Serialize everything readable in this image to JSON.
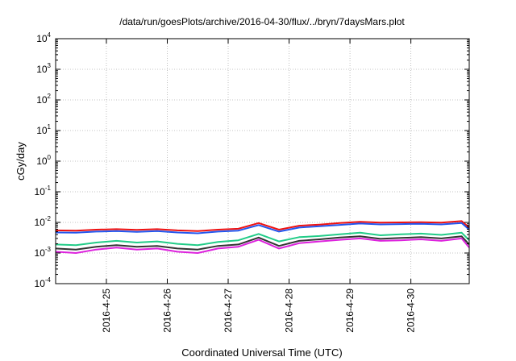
{
  "chart_data": {
    "type": "line",
    "title": "/data/run/goesPlots/archive/2016-04-30/flux/../bryn/7daysMars.plot",
    "xlabel": "Coordinated Universal Time (UTC)",
    "ylabel": "cGy/day",
    "yscale": "log",
    "ylim": [
      0.0001,
      10000
    ],
    "xlim": [
      "2016-04-24T04:00",
      "2016-04-30T23:00"
    ],
    "y_ticks": [
      {
        "base": "10",
        "exp": "4"
      },
      {
        "base": "10",
        "exp": "3"
      },
      {
        "base": "10",
        "exp": "2"
      },
      {
        "base": "10",
        "exp": "1"
      },
      {
        "base": "10",
        "exp": "0"
      },
      {
        "base": "10",
        "exp": "-1"
      },
      {
        "base": "10",
        "exp": "-2"
      },
      {
        "base": "10",
        "exp": "-3"
      },
      {
        "base": "10",
        "exp": "-4"
      }
    ],
    "x_ticks": [
      "2016-4-25",
      "2016-4-26",
      "2016-4-27",
      "2016-4-28",
      "2016-4-29",
      "2016-4-30"
    ],
    "grid": true,
    "legend": "none",
    "x": [
      "2016-04-24T04:00",
      "2016-04-24T12:00",
      "2016-04-24T20:00",
      "2016-04-25T04:00",
      "2016-04-25T12:00",
      "2016-04-25T20:00",
      "2016-04-26T04:00",
      "2016-04-26T12:00",
      "2016-04-26T20:00",
      "2016-04-27T04:00",
      "2016-04-27T12:00",
      "2016-04-27T20:00",
      "2016-04-28T04:00",
      "2016-04-28T12:00",
      "2016-04-28T20:00",
      "2016-04-29T04:00",
      "2016-04-29T12:00",
      "2016-04-29T20:00",
      "2016-04-30T04:00",
      "2016-04-30T12:00",
      "2016-04-30T20:00",
      "2016-04-30T23:00"
    ],
    "series": [
      {
        "color": "#ee1111",
        "values": [
          0.0055,
          0.0054,
          0.0058,
          0.006,
          0.0057,
          0.006,
          0.0055,
          0.0052,
          0.0058,
          0.0062,
          0.0095,
          0.0058,
          0.0078,
          0.0085,
          0.0095,
          0.0105,
          0.0098,
          0.01,
          0.0102,
          0.0098,
          0.011,
          0.0068
        ]
      },
      {
        "color": "#2255ee",
        "values": [
          0.0047,
          0.0046,
          0.005,
          0.0052,
          0.0049,
          0.0052,
          0.0047,
          0.0044,
          0.005,
          0.0054,
          0.0082,
          0.005,
          0.0068,
          0.0075,
          0.0083,
          0.0092,
          0.0086,
          0.0088,
          0.009,
          0.0086,
          0.0095,
          0.0058
        ]
      },
      {
        "color": "#22cc88",
        "values": [
          0.0019,
          0.0018,
          0.0022,
          0.0025,
          0.0022,
          0.0024,
          0.002,
          0.0018,
          0.0023,
          0.0026,
          0.0042,
          0.0024,
          0.0033,
          0.0036,
          0.0041,
          0.0046,
          0.0038,
          0.0041,
          0.0043,
          0.0039,
          0.0046,
          0.0026
        ]
      },
      {
        "color": "#333333",
        "values": [
          0.0014,
          0.0013,
          0.0016,
          0.0018,
          0.0016,
          0.0017,
          0.0014,
          0.0013,
          0.0017,
          0.0019,
          0.0032,
          0.0017,
          0.0025,
          0.0028,
          0.0032,
          0.0035,
          0.0029,
          0.0031,
          0.0033,
          0.003,
          0.0035,
          0.0019
        ]
      },
      {
        "color": "#dd22dd",
        "values": [
          0.0011,
          0.001,
          0.0013,
          0.0015,
          0.0013,
          0.0014,
          0.0011,
          0.001,
          0.0014,
          0.0016,
          0.0027,
          0.0014,
          0.0021,
          0.0024,
          0.0027,
          0.003,
          0.0025,
          0.0026,
          0.0028,
          0.0025,
          0.003,
          0.0015
        ]
      }
    ]
  }
}
